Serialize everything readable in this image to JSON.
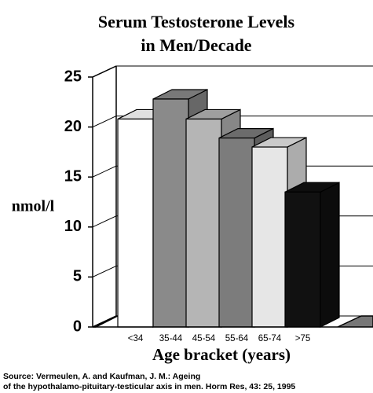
{
  "chart_data": {
    "type": "bar3d",
    "title": "Serum Testosterone Levels",
    "subtitle": "in Men/Decade",
    "y_label": "nmol/l",
    "x_label": "Age bracket (years)",
    "source": [
      "Source: Vermeulen, A. and Kaufman, J. M.: Ageing",
      "of the hypothalamo-pituitary-testicular axis in men. Horm Res, 43: 25, 1995"
    ],
    "categories": [
      "<34",
      "35-44",
      "45-54",
      "55-64",
      "65-74",
      ">75"
    ],
    "values": [
      20.8,
      22.8,
      20.8,
      18.9,
      18.0,
      13.5
    ],
    "colors": [
      "#ffffff",
      "#8a8a8a",
      "#b5b5b5",
      "#7c7c7c",
      "#e6e6e6",
      "#111111"
    ],
    "ylim": [
      0,
      25
    ],
    "yticks": [
      0,
      5,
      10,
      15,
      20,
      25
    ],
    "grid": true
  }
}
